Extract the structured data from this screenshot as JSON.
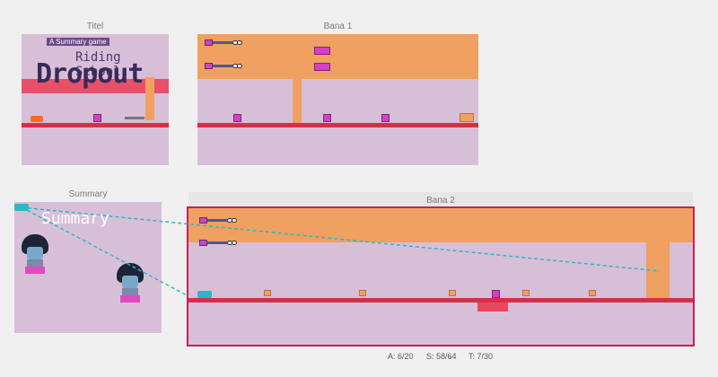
{
  "panels": {
    "titel": {
      "label": "Titel",
      "title_screen": {
        "subtitle": "A Summary game",
        "line1": "Riding School",
        "line2": "Dropout"
      }
    },
    "bana1": {
      "label": "Bana 1"
    },
    "summary": {
      "label": "Summary",
      "heading": "Summary"
    },
    "bana2": {
      "label": "Bana 2",
      "stats": {
        "a": "A: 6/20",
        "s": "S: 58/64",
        "t": "T: 7/30"
      }
    }
  },
  "colors": {
    "background": "#f0f0f0",
    "level_bg": "#d8bfd8",
    "sky": "#f0a060",
    "lava": "#d63048",
    "selection": "#c81e5c",
    "connector": "#2ab8c8"
  }
}
